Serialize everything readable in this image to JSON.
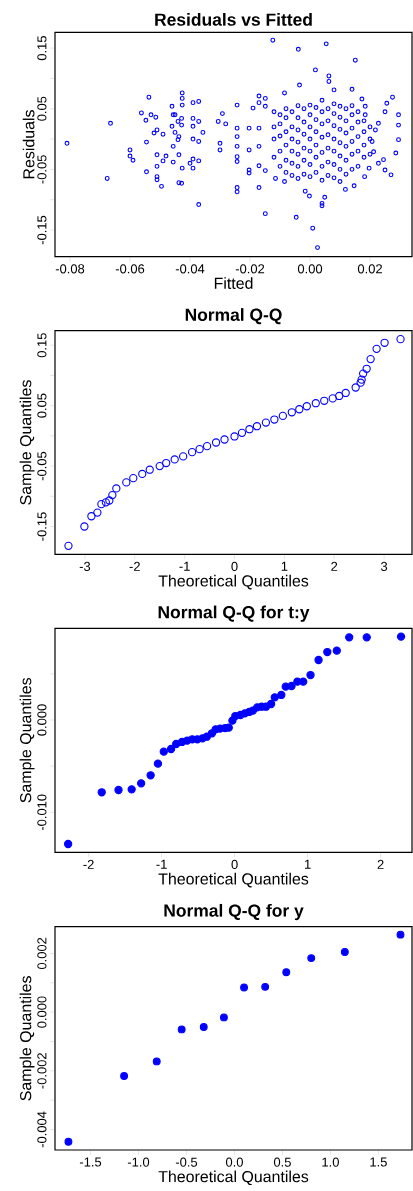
{
  "chart_data": [
    {
      "type": "scatter",
      "title": "Residuals vs Fitted",
      "xlabel": "Fitted",
      "ylabel": "Residuals",
      "marker": "circle",
      "xlim": [
        -0.085,
        0.034
      ],
      "ylim": [
        -0.194,
        0.176
      ],
      "xticks": [
        -0.08,
        -0.06,
        -0.04,
        -0.02,
        {
          "value": 0,
          "label": "0.00"
        },
        0.02
      ],
      "yticks": [
        -0.15,
        {
          "value": -0.1,
          "label": null
        },
        -0.05,
        {
          "value": 0,
          "label": null
        },
        0.05,
        {
          "value": 0.1,
          "label": null
        },
        0.15
      ],
      "series": [
        {
          "color": "#0000ff",
          "x": [
            -0.081,
            -0.0665,
            -0.0676,
            -0.06,
            -0.06,
            -0.059,
            -0.0562,
            -0.0547,
            -0.0537,
            -0.0545,
            -0.0545,
            -0.053,
            -0.0514,
            -0.052,
            -0.051,
            -0.051,
            -0.051,
            -0.051,
            -0.051,
            -0.0495,
            -0.049,
            -0.049,
            -0.048,
            -0.046,
            -0.0456,
            -0.046,
            -0.0456,
            -0.0456,
            -0.045,
            -0.044,
            -0.0437,
            -0.0437,
            -0.0428,
            -0.0426,
            -0.0426,
            -0.0426,
            -0.0428,
            -0.0428,
            -0.0426,
            -0.0437,
            -0.044,
            -0.045,
            -0.039,
            -0.039,
            -0.039,
            -0.039,
            -0.039,
            -0.039,
            -0.04,
            -0.0371,
            -0.0371,
            -0.0371,
            -0.0371,
            -0.0371,
            -0.0357,
            -0.0306,
            -0.0292,
            -0.0281,
            -0.03,
            -0.03,
            -0.0243,
            -0.0243,
            -0.0243,
            -0.0243,
            -0.0243,
            -0.0243,
            -0.0243,
            -0.0243,
            -0.0203,
            -0.0203,
            -0.0203,
            -0.0203,
            -0.019,
            -0.017,
            -0.017,
            -0.017,
            -0.017,
            -0.017,
            -0.017,
            -0.0149,
            -0.0149,
            -0.0149,
            -0.0149,
            -0.0124,
            -0.0115,
            -0.0085,
            -0.0085,
            -0.0039,
            -0.0035,
            -0.0046,
            -0.0016,
            -0.0002,
            0.0009,
            0.0018,
            0.0025,
            0.004,
            0.004,
            0.0049,
            0.0054,
            0.0063,
            0.0063,
            0.008,
            0.014,
            0.0151,
            0.0147,
            0.0118,
            0.0173,
            0.0182,
            0.0197,
            0.0228,
            0.0245,
            0.025,
            0.027,
            0.0275,
            0.0286,
            0.0295,
            0.0295,
            0.0295,
            0.0256,
            0.025,
            0.0228,
            0.0218,
            0.0207,
            0.0212,
            0.0184,
            0.0184,
            -0.012,
            -0.012,
            -0.012,
            -0.012,
            -0.01,
            -0.01,
            -0.01,
            -0.01,
            -0.01,
            -0.008,
            -0.008,
            -0.008,
            -0.008,
            -0.008,
            -0.008,
            -0.006,
            -0.006,
            -0.006,
            -0.006,
            -0.006,
            -0.006,
            -0.004,
            -0.004,
            -0.004,
            -0.004,
            -0.004,
            -0.004,
            -0.004,
            -0.002,
            -0.002,
            -0.002,
            -0.002,
            -0.002,
            -0.002,
            0,
            0,
            0,
            0,
            0,
            0,
            0,
            0.002,
            0.002,
            0.002,
            0.002,
            0.002,
            0.002,
            0.004,
            0.004,
            0.004,
            0.004,
            0.004,
            0.004,
            0.004,
            0.006,
            0.006,
            0.006,
            0.006,
            0.006,
            0.006,
            0.008,
            0.008,
            0.008,
            0.008,
            0.008,
            0.008,
            0.008,
            0.01,
            0.01,
            0.01,
            0.01,
            0.01,
            0.01,
            0.01,
            0.012,
            0.012,
            0.012,
            0.012,
            0.012,
            0.012,
            0.014,
            0.014,
            0.014,
            0.014,
            0.014,
            0.014,
            0.016,
            0.016,
            0.016,
            0.016,
            0.016,
            0.018,
            0.018,
            0.018,
            0.018,
            0.02,
            0.02,
            0.02
          ],
          "values": [
            -0.007,
            0.026,
            -0.065,
            -0.018,
            -0.028,
            -0.035,
            0.043,
            0.031,
            0.069,
            -0.005,
            -0.054,
            0.04,
            0.036,
            0.01,
            0.015,
            -0.026,
            -0.045,
            -0.062,
            -0.067,
            -0.078,
            -0.036,
            0.008,
            -0.028,
            0.054,
            0.04,
            0.021,
            -0.012,
            -0.038,
            0.011,
            -0.001,
            -0.026,
            -0.072,
            -0.073,
            0.076,
            0.067,
            0.056,
            0.034,
            0.023,
            -0.048,
            0.004,
            0.029,
            0.04,
            0.06,
            0.034,
            0.021,
            0,
            -0.033,
            -0.048,
            -0.04,
            0.062,
            0.029,
            -0.004,
            -0.036,
            -0.108,
            0.011,
            0.029,
            0.042,
            0.025,
            -0.007,
            -0.018,
            0.056,
            0.018,
            0.004,
            -0.012,
            -0.029,
            -0.037,
            -0.08,
            -0.087,
            0.018,
            -0.018,
            -0.051,
            -0.056,
            0.051,
            0.06,
            0.071,
            0.018,
            -0.012,
            -0.044,
            -0.08,
            0.067,
            0.054,
            -0.052,
            -0.123,
            0.163,
            -0.065,
            -0.07,
            0.076,
            0.148,
            0.089,
            -0.129,
            -0.086,
            -0.094,
            -0.147,
            0.114,
            -0.179,
            -0.106,
            -0.11,
            -0.096,
            0.157,
            0.104,
            0.095,
            0.081,
            0.082,
            0.13,
            -0.077,
            -0.083,
            0.066,
            -0.062,
            -0.048,
            -0.04,
            -0.034,
            -0.051,
            -0.059,
            0.069,
            -0.023,
            -0.001,
            0.023,
            0.04,
            0.059,
            0.045,
            0.026,
            0.015,
            -0.004,
            -0.021,
            0.054,
            0.04,
            -0.03,
            0,
            0.02,
            0.045,
            -0.045,
            -0.02,
            0.005,
            0.025,
            0.04,
            -0.055,
            -0.035,
            -0.01,
            0.012,
            0.035,
            0.05,
            -0.06,
            -0.04,
            -0.02,
            0,
            0.02,
            0.045,
            -0.065,
            -0.045,
            -0.025,
            -0.005,
            0.015,
            0.035,
            0.055,
            -0.058,
            -0.035,
            -0.015,
            0.008,
            0.028,
            0.05,
            -0.062,
            -0.042,
            -0.02,
            0,
            0.02,
            0.04,
            0.056,
            -0.055,
            -0.03,
            -0.01,
            0.012,
            0.032,
            0.052,
            -0.068,
            -0.045,
            -0.022,
            0.003,
            0.025,
            0.045,
            0.064,
            -0.06,
            -0.038,
            -0.015,
            0.007,
            0.03,
            0.05,
            -0.064,
            -0.042,
            -0.02,
            0,
            0.022,
            0.042,
            0.058,
            -0.07,
            -0.05,
            -0.028,
            -0.006,
            0.016,
            0.036,
            0.054,
            -0.058,
            -0.035,
            -0.012,
            0.01,
            0.03,
            0.05,
            -0.05,
            -0.025,
            -0.004,
            0.018,
            0.04,
            0.055,
            -0.045,
            -0.02,
            0.004,
            0.028,
            0.045,
            -0.03,
            -0.01,
            0.012,
            0.03,
            -0.025,
            0,
            0.02
          ]
        }
      ]
    },
    {
      "type": "scatter",
      "title": "Normal Q-Q",
      "xlabel": "Theoretical Quantiles",
      "ylabel": "Sample Quantiles",
      "marker": "circle",
      "xlim": [
        -3.6,
        3.56
      ],
      "ylim": [
        -0.196,
        0.174
      ],
      "xticks": [
        -3,
        -2,
        -1,
        0,
        1,
        2,
        3
      ],
      "yticks": [
        -0.15,
        {
          "value": -0.1,
          "label": null
        },
        -0.05,
        {
          "value": 0,
          "label": null
        },
        0.05,
        {
          "value": 0.1,
          "label": null
        },
        0.15
      ],
      "series": [
        {
          "color": "#0000ff",
          "x": [
            -3.33,
            -3.01,
            -2.87,
            -2.75,
            -2.67,
            -2.58,
            -2.51,
            -2.45,
            -2.37,
            -2.17,
            -2.03,
            -1.85,
            -1.7,
            -1.5,
            -1.37,
            -1.2,
            -1.03,
            -0.85,
            -0.7,
            -0.55,
            -0.37,
            -0.2,
            0,
            0.15,
            0.3,
            0.45,
            0.63,
            0.8,
            0.97,
            1.15,
            1.3,
            1.45,
            1.63,
            1.8,
            1.97,
            2.1,
            2.23,
            2.43,
            2.53,
            2.55,
            2.58,
            2.65,
            2.73,
            2.85,
            3.01,
            3.33
          ],
          "values": [
            -0.182,
            -0.15,
            -0.133,
            -0.127,
            -0.113,
            -0.11,
            -0.107,
            -0.098,
            -0.087,
            -0.077,
            -0.07,
            -0.063,
            -0.056,
            -0.05,
            -0.045,
            -0.039,
            -0.034,
            -0.027,
            -0.022,
            -0.017,
            -0.011,
            -0.006,
            -0.001,
            0.005,
            0.011,
            0.016,
            0.022,
            0.027,
            0.033,
            0.039,
            0.044,
            0.049,
            0.054,
            0.058,
            0.062,
            0.066,
            0.071,
            0.08,
            0.088,
            0.093,
            0.103,
            0.111,
            0.127,
            0.144,
            0.154,
            0.16
          ]
        }
      ]
    },
    {
      "type": "scatter",
      "title": "Normal Q-Q for t:y",
      "xlabel": "Theoretical Quantiles",
      "ylabel": "Sample Quantiles",
      "marker": "circle",
      "xlim": [
        -2.46,
        2.43
      ],
      "ylim": [
        -0.01433,
        0.00993
      ],
      "xticks": [
        -2,
        -1,
        0,
        1,
        2
      ],
      "yticks": [
        {
          "value": -0.01,
          "label": "-0.010"
        },
        {
          "value": -0.005,
          "label": null
        },
        {
          "value": 0,
          "label": "0.000"
        },
        {
          "value": 0.005,
          "label": null
        }
      ],
      "series": [
        {
          "color": "#0000ff",
          "x": [
            -2.28,
            -1.82,
            -1.59,
            -1.41,
            -1.28,
            -1.15,
            -1.05,
            -0.97,
            -0.87,
            -0.8,
            -0.72,
            -0.65,
            -0.58,
            -0.51,
            -0.44,
            -0.38,
            -0.31,
            -0.26,
            -0.2,
            -0.13,
            -0.08,
            -0.03,
            0.01,
            0.08,
            0.14,
            0.2,
            0.25,
            0.31,
            0.37,
            0.43,
            0.5,
            0.55,
            0.64,
            0.7,
            0.78,
            0.86,
            0.94,
            1.04,
            1.15,
            1.27,
            1.4,
            1.57,
            1.81,
            2.28
          ],
          "values": [
            -0.01343,
            -0.00783,
            -0.00758,
            -0.00751,
            -0.00686,
            -0.00599,
            -0.00473,
            -0.00343,
            -0.00314,
            -0.0026,
            -0.00238,
            -0.00224,
            -0.00209,
            -0.00209,
            -0.00199,
            -0.00181,
            -0.00144,
            -0.00101,
            -0.00094,
            -0.00087,
            -0.00083,
            -7e-05,
            0.00043,
            0.00054,
            0.00072,
            0.00087,
            0.00101,
            0.00137,
            0.00144,
            0.00144,
            0.00173,
            0.00245,
            0.00271,
            0.00361,
            0.00368,
            0.00415,
            0.00415,
            0.00487,
            0.0065,
            0.00736,
            0.00751,
            0.00895,
            0.00895,
            0.00903
          ]
        }
      ]
    },
    {
      "type": "scatter",
      "title": "Normal Q-Q for y",
      "xlabel": "Theoretical Quantiles",
      "ylabel": "Sample Quantiles",
      "marker": "circle",
      "xlim": [
        -1.87,
        1.85
      ],
      "ylim": [
        -0.0047,
        0.00291
      ],
      "xticks": [
        -1.5,
        {
          "value": -1,
          "label": "-1.0"
        },
        -0.5,
        {
          "value": 0,
          "label": "0.0"
        },
        0.5,
        {
          "value": 1,
          "label": "1.0"
        },
        1.5
      ],
      "yticks": [
        {
          "value": -0.004,
          "label": "-0.004"
        },
        {
          "value": -0.003,
          "label": null
        },
        {
          "value": -0.002,
          "label": "-0.002"
        },
        {
          "value": -0.001,
          "label": null
        },
        {
          "value": 0,
          "label": "0.000"
        },
        {
          "value": 0.001,
          "label": null
        },
        {
          "value": 0.002,
          "label": "0.002"
        }
      ],
      "series": [
        {
          "color": "#0000ff",
          "x": [
            -1.73,
            -1.15,
            -0.81,
            -0.55,
            -0.32,
            -0.11,
            0.1,
            0.32,
            0.54,
            0.8,
            1.15,
            1.73
          ],
          "values": [
            -0.00442,
            -0.00218,
            -0.00168,
            -0.00059,
            -0.00051,
            -0.00018,
            0.00084,
            0.00086,
            0.00136,
            0.00184,
            0.00205,
            0.00264
          ]
        }
      ]
    }
  ]
}
